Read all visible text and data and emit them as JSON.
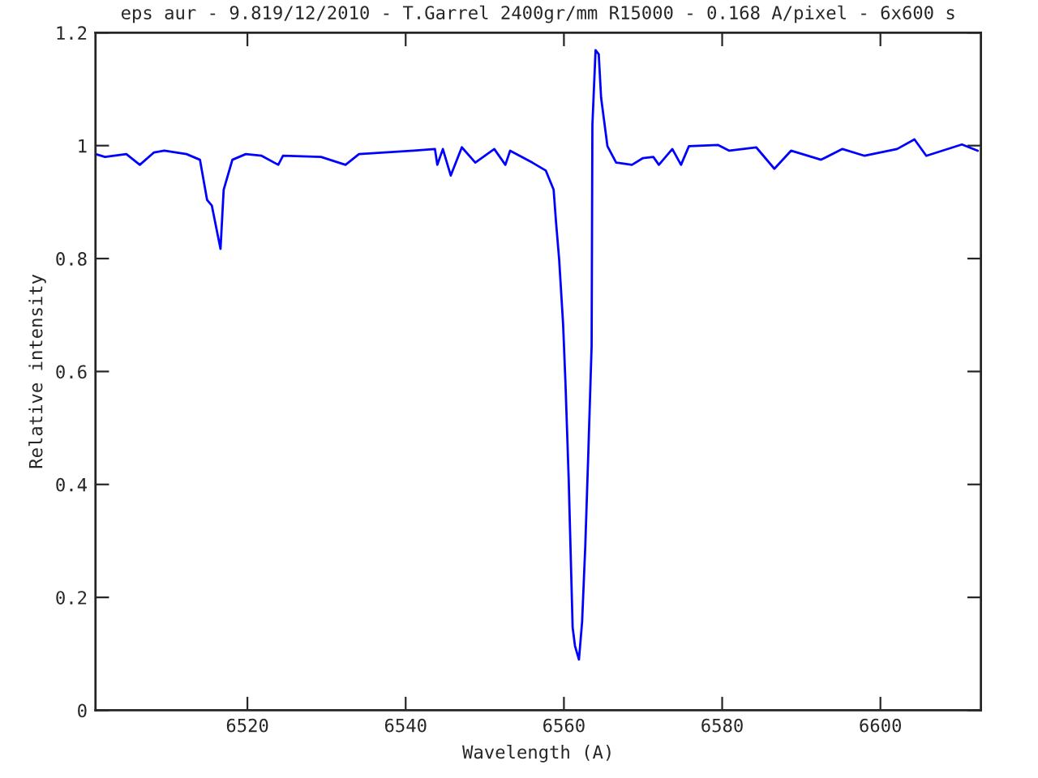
{
  "chart_data": {
    "type": "line",
    "title": "eps aur - 9.819/12/2010 - T.Garrel 2400gr/mm R15000 - 0.168 A/pixel - 6x600 s",
    "xlabel": "Wavelength (A)",
    "ylabel": "Relative intensity",
    "x": [
      6500.8,
      6502.0,
      6504.7,
      6506.4,
      6508.2,
      6509.5,
      6512.3,
      6514.0,
      6514.9,
      6515.5,
      6516.6,
      6517.0,
      6518.1,
      6519.8,
      6521.8,
      6523.9,
      6524.5,
      6529.3,
      6532.4,
      6534.1,
      6541.0,
      6543.7,
      6544.0,
      6544.7,
      6545.7,
      6547.1,
      6548.8,
      6551.2,
      6552.6,
      6553.2,
      6556.0,
      6557.7,
      6558.7,
      6559.0,
      6559.4,
      6559.9,
      6560.2,
      6560.6,
      6560.9,
      6561.1,
      6561.4,
      6561.9,
      6562.3,
      6562.7,
      6563.1,
      6563.5,
      6563.6,
      6564.0,
      6564.4,
      6564.7,
      6565.5,
      6566.6,
      6568.6,
      6570.0,
      6571.3,
      6572.0,
      6573.7,
      6574.8,
      6575.8,
      6579.5,
      6580.9,
      6584.3,
      6586.6,
      6588.7,
      6592.5,
      6595.2,
      6598.0,
      6602.1,
      6604.3,
      6605.8,
      6610.3,
      6612.3
    ],
    "series": [
      {
        "color": "#0000ff",
        "values": [
          0.985,
          0.98,
          0.985,
          0.966,
          0.988,
          0.991,
          0.985,
          0.975,
          0.904,
          0.894,
          0.817,
          0.922,
          0.975,
          0.985,
          0.982,
          0.966,
          0.982,
          0.98,
          0.966,
          0.985,
          0.991,
          0.994,
          0.966,
          0.994,
          0.947,
          0.997,
          0.97,
          0.994,
          0.966,
          0.991,
          0.97,
          0.956,
          0.922,
          0.865,
          0.798,
          0.683,
          0.578,
          0.411,
          0.253,
          0.147,
          0.114,
          0.09,
          0.157,
          0.291,
          0.463,
          0.645,
          1.037,
          1.169,
          1.162,
          1.085,
          0.999,
          0.97,
          0.966,
          0.978,
          0.98,
          0.966,
          0.994,
          0.966,
          0.999,
          1.001,
          0.991,
          0.997,
          0.959,
          0.991,
          0.975,
          0.994,
          0.982,
          0.994,
          1.011,
          0.982,
          1.002,
          0.991
        ]
      }
    ],
    "xlim": [
      6500.8,
      6612.7
    ],
    "ylim": [
      0,
      1.2
    ],
    "xticks": [
      6520,
      6540,
      6560,
      6580,
      6600
    ],
    "yticks": [
      0,
      {
        "value": 0.2,
        "label": "0.2"
      },
      {
        "value": 0.4,
        "label": "0.4"
      },
      {
        "value": 0.6,
        "label": "0.6"
      },
      {
        "value": 0.8,
        "label": "0.8"
      },
      {
        "value": 1,
        "label": "1"
      },
      {
        "value": 1.2,
        "label": "1.2"
      }
    ],
    "grid": false,
    "marker": "none",
    "line_style": "solid"
  }
}
